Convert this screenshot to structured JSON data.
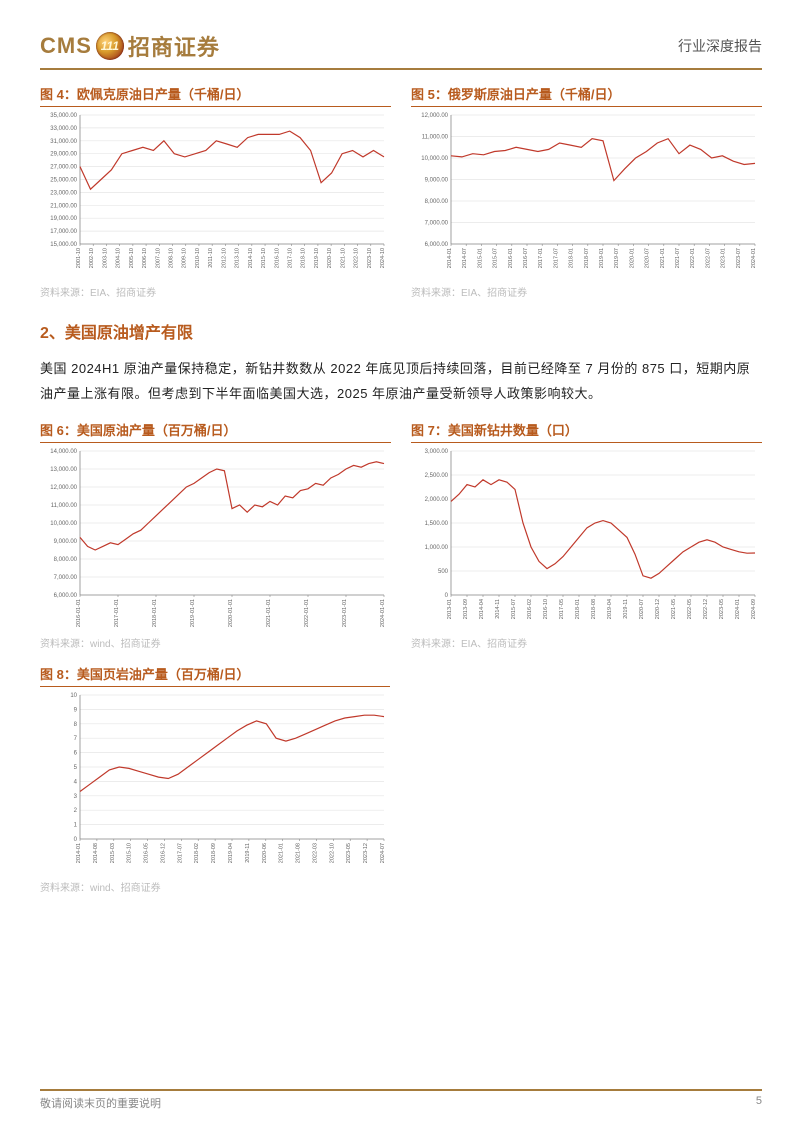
{
  "header": {
    "cms_en": "CMS",
    "logo_text": "111",
    "cms_cn": "招商证券",
    "cms_en_color": "#a67c3d",
    "cms_cn_color": "#a67c3d",
    "report_type": "行业深度报告"
  },
  "section": {
    "title": "2、美国原油增产有限",
    "body": "美国 2024H1 原油产量保持稳定，新钻井数数从 2022 年底见顶后持续回落，目前已经降至 7 月份的 875 口，短期内原油产量上涨有限。但考虑到下半年面临美国大选，2025 年原油产量受新领导人政策影响较大。"
  },
  "footer": {
    "disclaimer": "敬请阅读末页的重要说明",
    "page": "5"
  },
  "source_eia": "资料来源：EIA、招商证券",
  "source_wind": "资料来源：wind、招商证券",
  "fig4": {
    "label": "图 4：",
    "title": "欧佩克原油日产量（千桶/日）",
    "type": "line",
    "color": "#c0392b",
    "ylim": [
      15000,
      35000
    ],
    "ytick_step": 2000,
    "background": "#ffffff",
    "grid_color": "#e6e6e6",
    "x_labels": [
      "2001-10",
      "2002-10",
      "2003-10",
      "2004-10",
      "2005-10",
      "2006-10",
      "2007-10",
      "2008-10",
      "2009-10",
      "2010-10",
      "2011-10",
      "2012-10",
      "2013-10",
      "2014-10",
      "2015-10",
      "2016-10",
      "2017-10",
      "2018-10",
      "2019-10",
      "2020-10",
      "2021-10",
      "2022-10",
      "2023-10",
      "2024-10"
    ],
    "data": [
      27000,
      23500,
      25000,
      26500,
      29000,
      29500,
      30000,
      29500,
      31000,
      29000,
      28500,
      29000,
      29500,
      31000,
      30500,
      30000,
      31500,
      32000,
      32000,
      32000,
      32500,
      31500,
      29500,
      24500,
      26000,
      29000,
      29500,
      28500,
      29500,
      28500
    ]
  },
  "fig5": {
    "label": "图 5：",
    "title": "俄罗斯原油日产量（千桶/日）",
    "type": "line",
    "color": "#c0392b",
    "ylim": [
      6000,
      12000
    ],
    "ytick_step": 1000,
    "background": "#ffffff",
    "grid_color": "#e6e6e6",
    "x_labels": [
      "2014-01",
      "2014-07",
      "2015-01",
      "2015-07",
      "2016-01",
      "2016-07",
      "2017-01",
      "2017-07",
      "2018-01",
      "2018-07",
      "2019-01",
      "2019-07",
      "2020-01",
      "2020-07",
      "2021-01",
      "2021-07",
      "2022-01",
      "2022-07",
      "2023-01",
      "2023-07",
      "2024-01"
    ],
    "data": [
      10100,
      10050,
      10200,
      10150,
      10300,
      10350,
      10500,
      10400,
      10300,
      10400,
      10700,
      10600,
      10500,
      10900,
      10800,
      8950,
      9500,
      10000,
      10300,
      10700,
      10900,
      10200,
      10600,
      10400,
      10000,
      10100,
      9850,
      9700,
      9750
    ]
  },
  "fig6": {
    "label": "图 6：",
    "title": "美国原油产量（百万桶/日）",
    "type": "line",
    "color": "#c0392b",
    "ylim": [
      6000,
      14000
    ],
    "ytick_step": 1000,
    "background": "#ffffff",
    "grid_color": "#e6e6e6",
    "x_labels": [
      "2016-01-01",
      "2017-01-01",
      "2018-01-01",
      "2019-01-01",
      "2020-01-01",
      "2021-01-01",
      "2022-01-01",
      "2023-01-01",
      "2024-01-01"
    ],
    "data": [
      9200,
      8700,
      8500,
      8700,
      8900,
      8800,
      9100,
      9400,
      9600,
      10000,
      10400,
      10800,
      11200,
      11600,
      12000,
      12200,
      12500,
      12800,
      13000,
      12900,
      10800,
      11000,
      10600,
      11000,
      10900,
      11200,
      11000,
      11500,
      11400,
      11800,
      11900,
      12200,
      12100,
      12500,
      12700,
      13000,
      13200,
      13100,
      13300,
      13400,
      13300
    ]
  },
  "fig7": {
    "label": "图 7：",
    "title": "美国新钻井数量（口）",
    "type": "line",
    "color": "#c0392b",
    "ylim": [
      0,
      3000
    ],
    "ytick_step": 500,
    "background": "#ffffff",
    "grid_color": "#e6e6e6",
    "x_labels": [
      "2013-01",
      "2013-09",
      "2014-04",
      "2014-11",
      "2015-07",
      "2016-02",
      "2016-10",
      "2017-05",
      "2018-01",
      "2018-08",
      "2019-04",
      "2019-11",
      "2020-07",
      "2020-12",
      "2021-05",
      "2022-05",
      "2022-12",
      "2023-05",
      "2024-01",
      "2024-09"
    ],
    "data": [
      1950,
      2100,
      2300,
      2250,
      2400,
      2300,
      2400,
      2350,
      2200,
      1500,
      1000,
      700,
      550,
      650,
      800,
      1000,
      1200,
      1400,
      1500,
      1550,
      1500,
      1350,
      1200,
      850,
      400,
      350,
      450,
      600,
      750,
      900,
      1000,
      1100,
      1150,
      1100,
      1000,
      950,
      900,
      870,
      875
    ]
  },
  "fig8": {
    "label": "图 8：",
    "title": "美国页岩油产量（百万桶/日）",
    "type": "line",
    "color": "#c0392b",
    "ylim": [
      0,
      10
    ],
    "ytick_step": 1,
    "background": "#ffffff",
    "grid_color": "#e6e6e6",
    "x_labels": [
      "2014-01",
      "2014-08",
      "2015-03",
      "2015-10",
      "2016-05",
      "2016-12",
      "2017-07",
      "2018-02",
      "2018-09",
      "2019-04",
      "2019-11",
      "2020-06",
      "2021-01",
      "2021-08",
      "2022-03",
      "2022-10",
      "2023-05",
      "2023-12",
      "2024-07"
    ],
    "data": [
      3.3,
      3.8,
      4.3,
      4.8,
      5.0,
      4.9,
      4.7,
      4.5,
      4.3,
      4.2,
      4.5,
      5.0,
      5.5,
      6.0,
      6.5,
      7.0,
      7.5,
      7.9,
      8.2,
      8.0,
      7.0,
      6.8,
      7.0,
      7.3,
      7.6,
      7.9,
      8.2,
      8.4,
      8.5,
      8.6,
      8.6,
      8.5
    ]
  }
}
